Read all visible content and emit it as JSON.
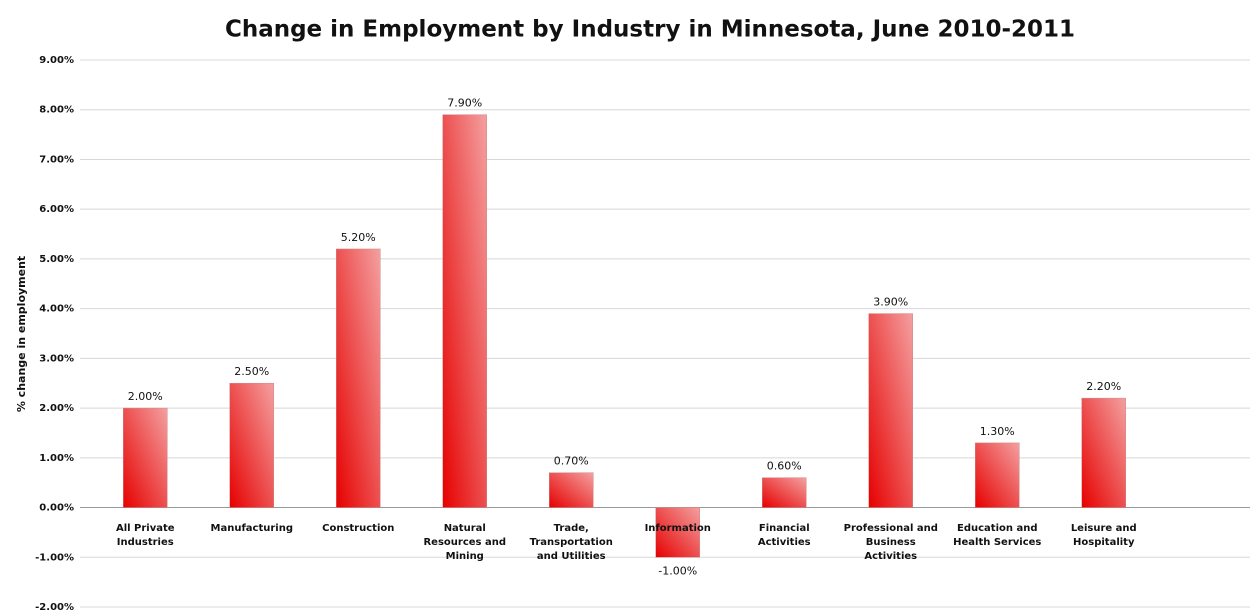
{
  "chart_data": {
    "type": "bar",
    "title": "Change in Employment by Industry in Minnesota, June 2010-2011",
    "y_label": "% change in employment",
    "categories": [
      "All Private Industries",
      "Manufacturing",
      "Construction",
      "Natural Resources and Mining",
      "Trade, Transportation and Utilities",
      "Information",
      "Financial Activities",
      "Professional and Business Activities",
      "Education and Health Services",
      "Leisure and Hospitality"
    ],
    "values": [
      2.0,
      2.5,
      5.2,
      7.9,
      0.7,
      -1.0,
      0.6,
      3.9,
      1.3,
      2.2
    ],
    "value_labels": [
      "2.00%",
      "2.50%",
      "5.20%",
      "7.90%",
      "0.70%",
      "-1.00%",
      "0.60%",
      "3.90%",
      "1.30%",
      "2.20%"
    ],
    "color": "#e60000",
    "ylim": [
      -2,
      9
    ],
    "yticks": [
      {
        "value": -2,
        "label": "-2.00%"
      },
      {
        "value": -1,
        "label": "-1.00%"
      },
      {
        "value": 0,
        "label": "0.00%"
      },
      {
        "value": 1,
        "label": "1.00%"
      },
      {
        "value": 2,
        "label": "2.00%"
      },
      {
        "value": 3,
        "label": "3.00%"
      },
      {
        "value": 4,
        "label": "4.00%"
      },
      {
        "value": 5,
        "label": "5.00%"
      },
      {
        "value": 6,
        "label": "6.00%"
      },
      {
        "value": 7,
        "label": "7.00%"
      },
      {
        "value": 8,
        "label": "8.00%"
      },
      {
        "value": 9,
        "label": "9.00%"
      }
    ],
    "grid": true
  }
}
